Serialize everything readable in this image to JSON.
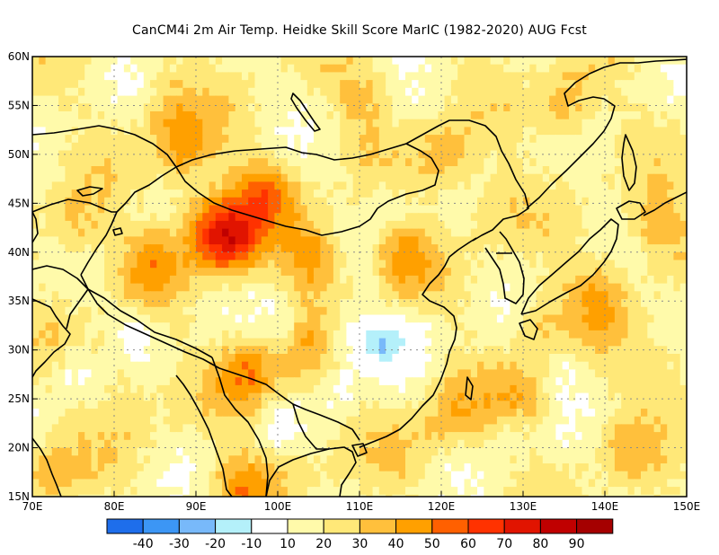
{
  "title": "CanCM4i  2m Air Temp. Heidke Skill Score MarIC (1982-2020) AUG Fcst",
  "map": {
    "lon_range": [
      70,
      150
    ],
    "lat_range": [
      15,
      60
    ],
    "x_ticks": [
      {
        "value": 70,
        "label": "70E"
      },
      {
        "value": 80,
        "label": "80E"
      },
      {
        "value": 90,
        "label": "90E"
      },
      {
        "value": 100,
        "label": "100E"
      },
      {
        "value": 110,
        "label": "110E"
      },
      {
        "value": 120,
        "label": "120E"
      },
      {
        "value": 130,
        "label": "130E"
      },
      {
        "value": 140,
        "label": "140E"
      },
      {
        "value": 150,
        "label": "150E"
      }
    ],
    "y_ticks": [
      {
        "value": 15,
        "label": "15N"
      },
      {
        "value": 20,
        "label": "20N"
      },
      {
        "value": 25,
        "label": "25N"
      },
      {
        "value": 30,
        "label": "30N"
      },
      {
        "value": 35,
        "label": "35N"
      },
      {
        "value": 40,
        "label": "40N"
      },
      {
        "value": 45,
        "label": "45N"
      },
      {
        "value": 50,
        "label": "50N"
      },
      {
        "value": 55,
        "label": "55N"
      },
      {
        "value": 60,
        "label": "60N"
      }
    ],
    "hotspots": [
      {
        "lon": 94,
        "lat": 41.5,
        "v": 62
      },
      {
        "lon": 91,
        "lat": 43,
        "v": 50
      },
      {
        "lon": 98,
        "lat": 46.5,
        "v": 52
      },
      {
        "lon": 104,
        "lat": 40,
        "v": 50
      },
      {
        "lon": 88,
        "lat": 51,
        "v": 48
      },
      {
        "lon": 115,
        "lat": 40,
        "v": 45
      },
      {
        "lon": 96,
        "lat": 28,
        "v": 50
      },
      {
        "lon": 95,
        "lat": 16,
        "v": 45
      },
      {
        "lon": 135,
        "lat": 55,
        "v": 42
      },
      {
        "lon": 146,
        "lat": 43,
        "v": 42
      },
      {
        "lon": 139,
        "lat": 36,
        "v": 42
      },
      {
        "lon": 121,
        "lat": 24,
        "v": 40
      },
      {
        "lon": 84,
        "lat": 39,
        "v": 42
      },
      {
        "lon": 75,
        "lat": 43,
        "v": 40
      },
      {
        "lon": 120,
        "lat": 50,
        "v": 40
      },
      {
        "lon": 129,
        "lat": 25,
        "v": 38
      },
      {
        "lon": 147,
        "lat": 28,
        "v": 36
      },
      {
        "lon": 110,
        "lat": 56,
        "v": 35
      },
      {
        "lon": 72,
        "lat": 18,
        "v": 38
      },
      {
        "lon": 103,
        "lat": 30,
        "v": 35
      },
      {
        "lon": 80,
        "lat": 29,
        "v": 30
      },
      {
        "lon": 142,
        "lat": 20,
        "v": 32
      },
      {
        "lon": 126,
        "lat": 45,
        "v": 32
      },
      {
        "lon": 132,
        "lat": 33,
        "v": 35
      },
      {
        "lon": 82,
        "lat": 24,
        "v": 28
      },
      {
        "lon": 101,
        "lat": 20,
        "v": 32
      },
      {
        "lon": 115,
        "lat": 20,
        "v": 28
      },
      {
        "lon": 86,
        "lat": 56,
        "v": 32
      }
    ],
    "coolspots": [
      {
        "lon": 112,
        "lat": 31,
        "v": -15
      },
      {
        "lon": 108,
        "lat": 32,
        "v": 5
      },
      {
        "lon": 107,
        "lat": 27,
        "v": 6
      },
      {
        "lon": 128,
        "lat": 22,
        "v": 8
      },
      {
        "lon": 82,
        "lat": 32,
        "v": 6
      },
      {
        "lon": 100,
        "lat": 22,
        "v": 6
      },
      {
        "lon": 113,
        "lat": 45,
        "v": 8
      },
      {
        "lon": 75,
        "lat": 28,
        "v": 6
      },
      {
        "lon": 135,
        "lat": 29,
        "v": 10
      },
      {
        "lon": 100,
        "lat": 33,
        "v": 8
      },
      {
        "lon": 116,
        "lat": 32,
        "v": 6
      },
      {
        "lon": 150,
        "lat": 35,
        "v": 12
      }
    ]
  },
  "colorbar": {
    "colors": [
      "#1e6eeb",
      "#3c96f5",
      "#78b9fa",
      "#b4f0fa",
      "#ffffff",
      "#fffaaa",
      "#ffe878",
      "#ffc03c",
      "#ffa000",
      "#ff6000",
      "#ff3200",
      "#e11400",
      "#c00000",
      "#a50000"
    ],
    "labels": [
      "-40",
      "-30",
      "-20",
      "-10",
      "10",
      "20",
      "30",
      "40",
      "50",
      "60",
      "70",
      "80",
      "90"
    ],
    "bounds": [
      -50,
      -40,
      -30,
      -20,
      -10,
      10,
      20,
      30,
      40,
      50,
      60,
      70,
      80,
      90,
      100
    ]
  }
}
